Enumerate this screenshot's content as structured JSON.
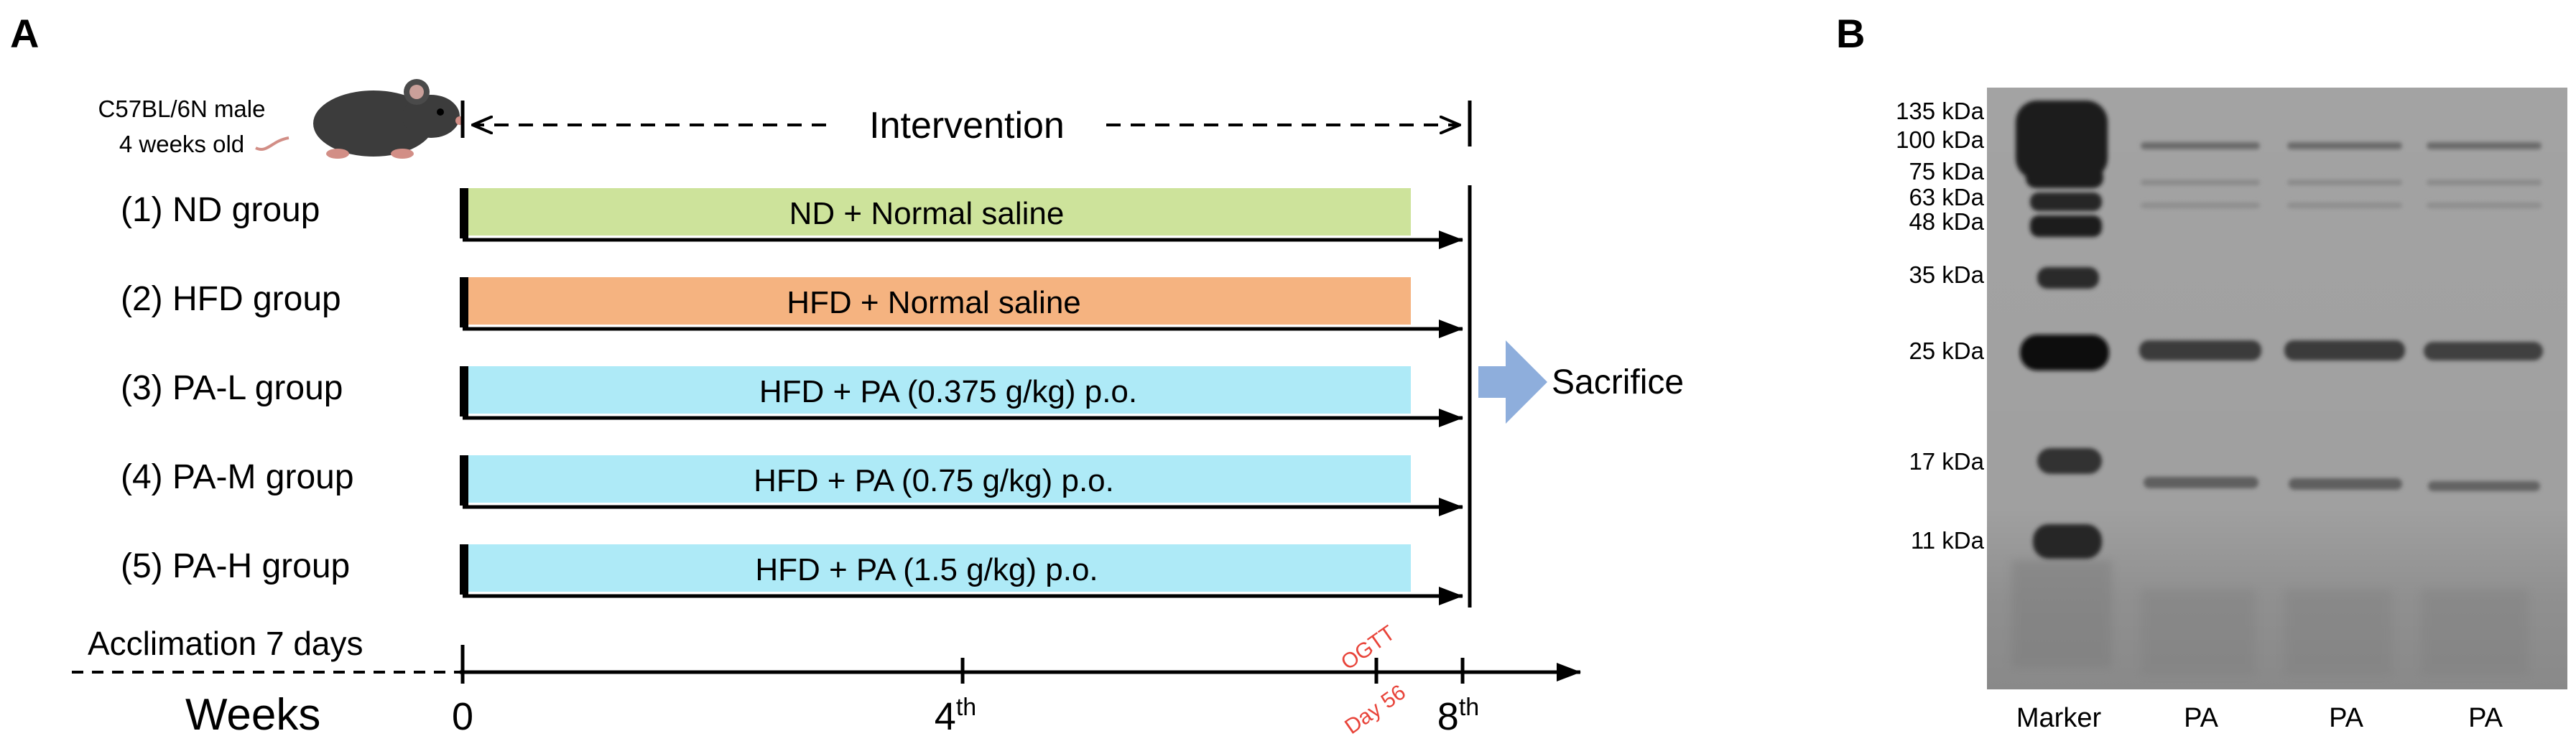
{
  "panel_a": {
    "label": "A",
    "mouse": {
      "strain": "C57BL/6N male",
      "age": "4 weeks old"
    },
    "intervention_label": "Intervention",
    "groups": [
      {
        "name": "(1) ND group",
        "treatment": "ND + Normal saline",
        "color": "#cde39b"
      },
      {
        "name": "(2) HFD group",
        "treatment": "HFD + Normal saline",
        "color": "#f5b380"
      },
      {
        "name": "(3) PA-L group",
        "treatment": "HFD + PA (0.375 g/kg) p.o.",
        "color": "#aeeaf7"
      },
      {
        "name": "(4) PA-M group",
        "treatment": "HFD + PA (0.75 g/kg) p.o.",
        "color": "#aeeaf7"
      },
      {
        "name": "(5) PA-H group",
        "treatment": "HFD + PA (1.5 g/kg) p.o.",
        "color": "#aeeaf7"
      }
    ],
    "endpoint": {
      "label": "Sacrifice",
      "arrow_color": "#8eaedc"
    },
    "timeline": {
      "acclimation": "Acclimation 7 days",
      "axis_label": "Weeks",
      "ticks": [
        {
          "num": "0",
          "sup": ""
        },
        {
          "num": "4",
          "sup": "th"
        },
        {
          "num": "8",
          "sup": "th"
        }
      ],
      "ogtt": {
        "label": "OGTT",
        "day": "Day 56",
        "color": "#e8443a"
      }
    }
  },
  "panel_b": {
    "label": "B",
    "markers": [
      "135 kDa",
      "100 kDa",
      "75 kDa",
      "63 kDa",
      "48 kDa",
      "35 kDa",
      "25 kDa",
      "17 kDa",
      "11 kDa"
    ],
    "lanes": [
      "Marker",
      "PA",
      "PA",
      "PA"
    ]
  }
}
